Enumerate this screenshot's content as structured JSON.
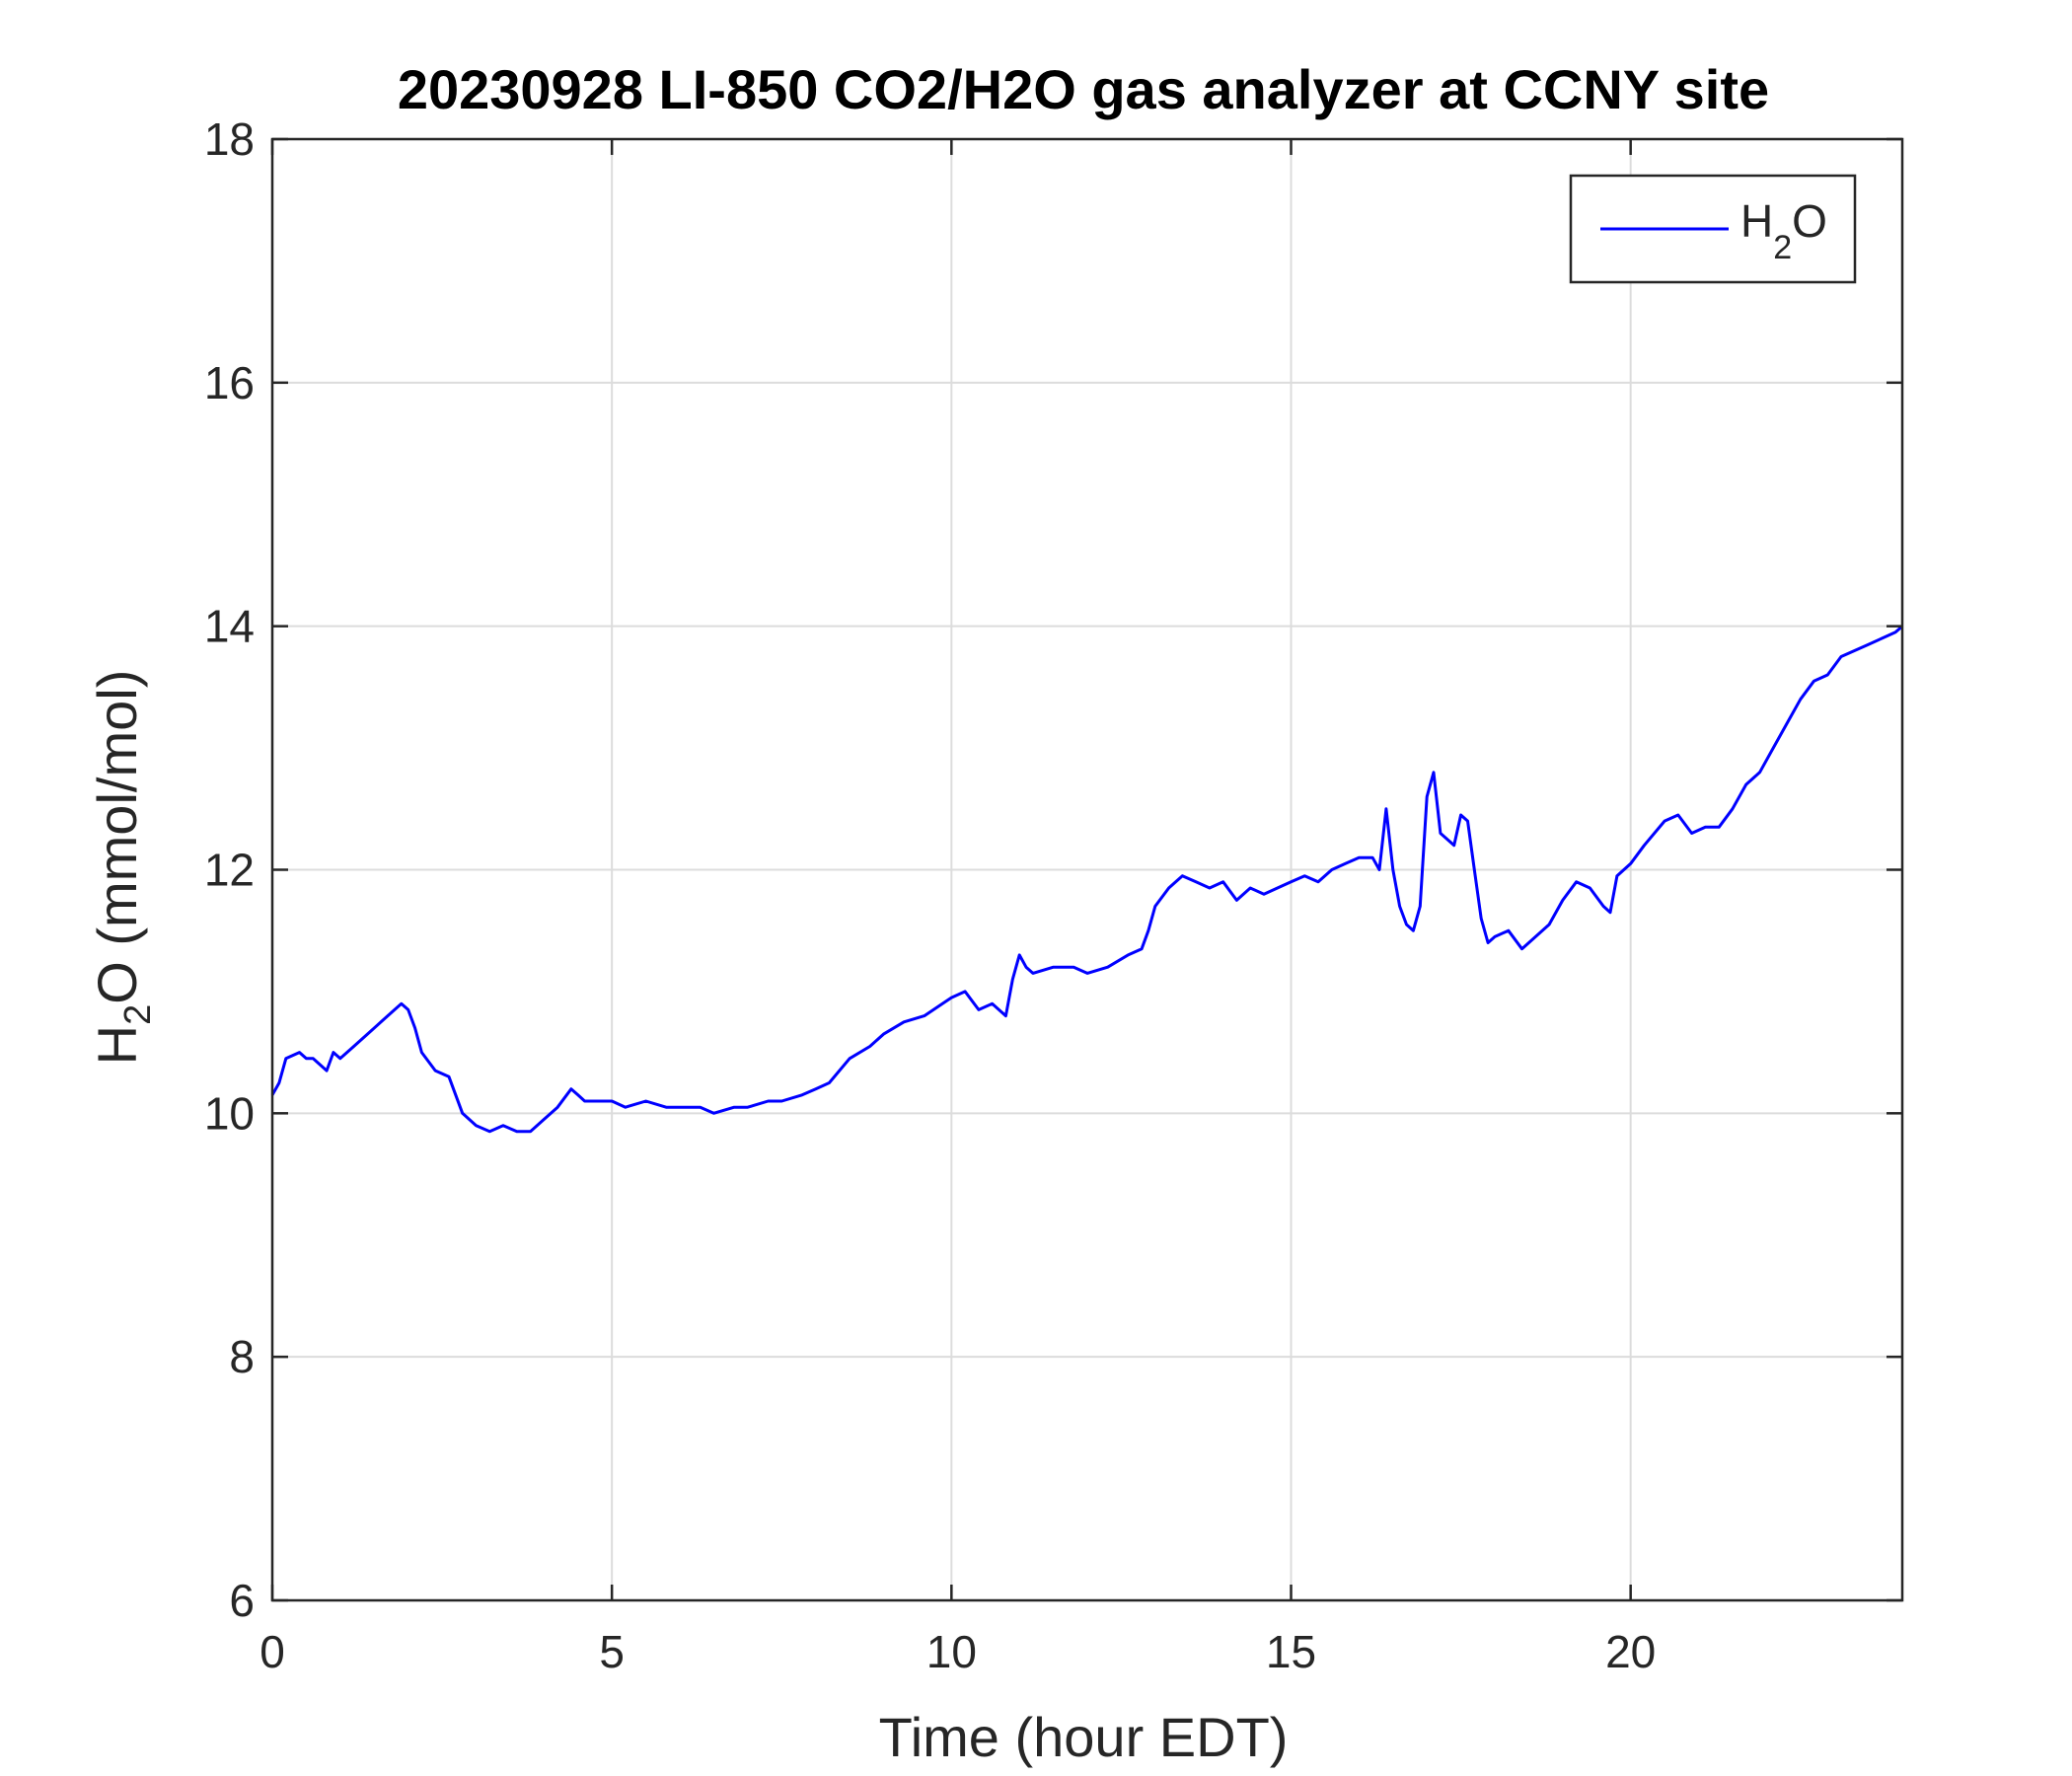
{
  "chart_data": {
    "type": "line",
    "title": "20230928 LI-850 CO2/H2O gas analyzer at CCNY site",
    "xlabel": "Time (hour EDT)",
    "ylabel": {
      "main": "H",
      "sub": "2",
      "rest": "O (mmol/mol)"
    },
    "xlim": [
      0,
      24
    ],
    "ylim": [
      6,
      18
    ],
    "xticks": [
      0,
      5,
      10,
      15,
      20
    ],
    "yticks": [
      6,
      8,
      10,
      12,
      14,
      16,
      18
    ],
    "xtick_labels": [
      "0",
      "5",
      "10",
      "15",
      "20"
    ],
    "ytick_labels": [
      "6",
      "8",
      "10",
      "12",
      "14",
      "16",
      "18"
    ],
    "grid": true,
    "legend_position": "top-right",
    "colors": {
      "series": "#0000ff",
      "grid": "#dcdcdc",
      "axis": "#262626"
    },
    "series": [
      {
        "legend": {
          "main": "H",
          "sub": "2",
          "rest": "O"
        },
        "x": [
          0,
          0.1,
          0.2,
          0.4,
          0.5,
          0.6,
          0.8,
          0.9,
          1.0,
          1.2,
          1.4,
          1.6,
          1.8,
          1.9,
          2.0,
          2.1,
          2.2,
          2.4,
          2.6,
          2.8,
          2.9,
          3.0,
          3.2,
          3.4,
          3.6,
          3.8,
          4.0,
          4.2,
          4.4,
          4.5,
          4.6,
          4.8,
          5.0,
          5.2,
          5.5,
          5.8,
          6.0,
          6.3,
          6.5,
          6.8,
          7.0,
          7.3,
          7.5,
          7.8,
          8.0,
          8.2,
          8.5,
          8.8,
          9.0,
          9.3,
          9.6,
          10.0,
          10.2,
          10.4,
          10.6,
          10.8,
          10.9,
          11.0,
          11.1,
          11.2,
          11.5,
          11.8,
          12.0,
          12.3,
          12.6,
          12.8,
          12.9,
          13.0,
          13.2,
          13.4,
          13.6,
          13.8,
          14.0,
          14.2,
          14.4,
          14.6,
          14.8,
          15.0,
          15.2,
          15.4,
          15.6,
          15.8,
          16.0,
          16.2,
          16.3,
          16.4,
          16.5,
          16.6,
          16.7,
          16.8,
          16.9,
          17.0,
          17.1,
          17.2,
          17.3,
          17.4,
          17.5,
          17.6,
          17.7,
          17.8,
          17.9,
          18.0,
          18.2,
          18.4,
          18.6,
          18.8,
          19.0,
          19.2,
          19.4,
          19.6,
          19.7,
          19.8,
          20.0,
          20.2,
          20.5,
          20.7,
          20.9,
          21.1,
          21.3,
          21.5,
          21.7,
          21.9,
          22.1,
          22.3,
          22.5,
          22.7,
          22.9,
          23.1,
          23.3,
          23.5,
          23.7,
          23.9,
          24.0
        ],
        "y": [
          10.15,
          10.25,
          10.45,
          10.5,
          10.45,
          10.45,
          10.35,
          10.5,
          10.45,
          10.55,
          10.65,
          10.75,
          10.85,
          10.9,
          10.85,
          10.7,
          10.5,
          10.35,
          10.3,
          10.0,
          9.95,
          9.9,
          9.85,
          9.9,
          9.85,
          9.85,
          9.95,
          10.05,
          10.2,
          10.15,
          10.1,
          10.1,
          10.1,
          10.05,
          10.1,
          10.05,
          10.05,
          10.05,
          10.0,
          10.05,
          10.05,
          10.1,
          10.1,
          10.15,
          10.2,
          10.25,
          10.45,
          10.55,
          10.65,
          10.75,
          10.8,
          10.95,
          11.0,
          10.85,
          10.9,
          10.8,
          11.1,
          11.3,
          11.2,
          11.15,
          11.2,
          11.2,
          11.15,
          11.2,
          11.3,
          11.35,
          11.5,
          11.7,
          11.85,
          11.95,
          11.9,
          11.85,
          11.9,
          11.75,
          11.85,
          11.8,
          11.85,
          11.9,
          11.95,
          11.9,
          12.0,
          12.05,
          12.1,
          12.1,
          12.0,
          12.5,
          12.0,
          11.7,
          11.55,
          11.5,
          11.7,
          12.6,
          12.8,
          12.3,
          12.25,
          12.2,
          12.45,
          12.4,
          12.0,
          11.6,
          11.4,
          11.45,
          11.5,
          11.35,
          11.45,
          11.55,
          11.75,
          11.9,
          11.85,
          11.7,
          11.65,
          11.95,
          12.05,
          12.2,
          12.4,
          12.45,
          12.3,
          12.35,
          12.35,
          12.5,
          12.7,
          12.8,
          13.0,
          13.2,
          13.4,
          13.55,
          13.6,
          13.75,
          13.8,
          13.85,
          13.9,
          13.95,
          14.0
        ]
      }
    ]
  }
}
